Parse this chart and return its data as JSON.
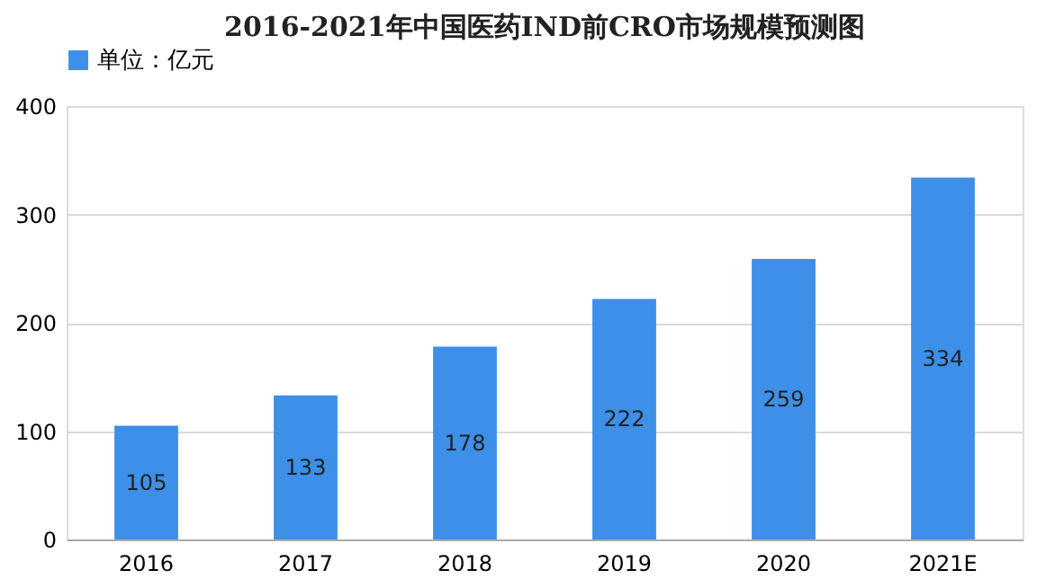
{
  "chart_data": {
    "type": "bar",
    "title": "2016-2021年中国医药IND前CRO市场规模预测图",
    "categories": [
      "2016",
      "2017",
      "2018",
      "2019",
      "2020",
      "2021E"
    ],
    "series": [
      {
        "name": "单位：亿元",
        "color": "#3d8fe8",
        "values": [
          105,
          133,
          178,
          222,
          259,
          334
        ]
      }
    ],
    "ylim": [
      0,
      400
    ],
    "yticks": [
      0,
      100,
      200,
      300,
      400
    ],
    "grid": "y",
    "legend": "top",
    "data_labels": true
  }
}
